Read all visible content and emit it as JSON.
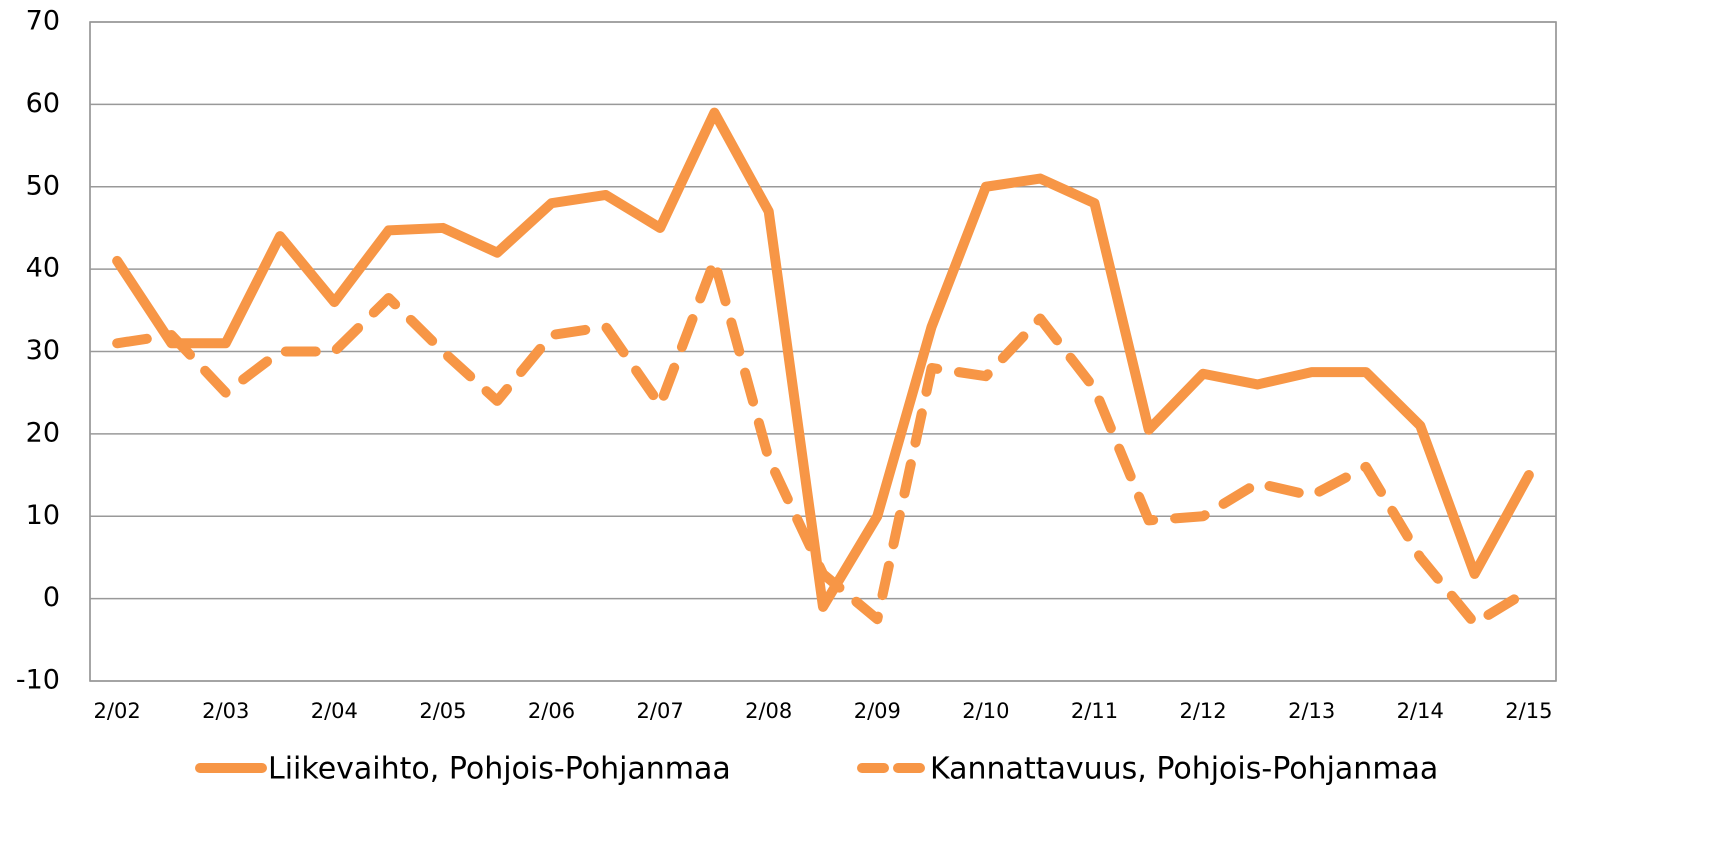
{
  "chart_data": {
    "type": "line",
    "categories": [
      "2/02",
      null,
      "2/03",
      null,
      "2/04",
      null,
      "2/05",
      null,
      "2/06",
      null,
      "2/07",
      null,
      "2/08",
      null,
      "2/09",
      null,
      "2/10",
      null,
      "2/11",
      null,
      "2/12",
      null,
      "2/13",
      null,
      "2/14",
      null,
      "2/15"
    ],
    "series": [
      {
        "name": "Liikevaihto, Pohjois-Pohjanmaa",
        "color": "#f79646",
        "line_style": "solid",
        "values": [
          41,
          31,
          31,
          44,
          36,
          44.7,
          45,
          42,
          48,
          49,
          45,
          59,
          47,
          -1,
          10,
          33,
          50,
          51,
          48,
          20.5,
          27.3,
          26,
          27.5,
          27.5,
          21,
          3,
          15
        ]
      },
      {
        "name": "Kannattavuus, Pohjois-Pohjanmaa",
        "color": "#f79646",
        "line_style": "dashed",
        "values": [
          31,
          32,
          25,
          30,
          30,
          36.5,
          30,
          24,
          32,
          33,
          23.5,
          41,
          17,
          3,
          -2.5,
          28,
          27,
          34,
          25.5,
          9.5,
          10,
          14,
          12.5,
          16,
          5,
          -3,
          1
        ]
      }
    ],
    "ylim": [
      -10,
      70
    ],
    "yticks": [
      -10,
      0,
      10,
      20,
      30,
      40,
      50,
      60,
      70
    ],
    "grid": true,
    "legend": "bottom"
  }
}
